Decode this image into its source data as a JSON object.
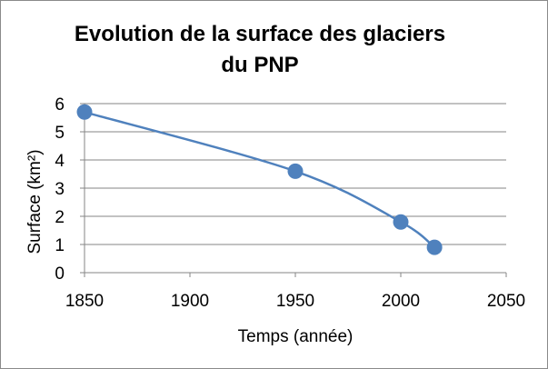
{
  "chart_data": {
    "type": "scatter",
    "title_line1": "Evolution de la surface des glaciers",
    "title_line2": "du PNP",
    "xlabel": "Temps (année)",
    "ylabel": "Surface (km²)",
    "xlim": [
      1850,
      2050
    ],
    "ylim": [
      0,
      6
    ],
    "x_ticks": [
      1850,
      1900,
      1950,
      2000,
      2050
    ],
    "y_ticks": [
      0,
      1,
      2,
      3,
      4,
      5,
      6
    ],
    "grid": "horizontal",
    "line": "smoothed",
    "series": [
      {
        "x": [
          1850,
          1950,
          2000,
          2016
        ],
        "y": [
          5.7,
          3.6,
          1.8,
          0.9
        ]
      }
    ],
    "colors": {
      "series": "#4f81bd",
      "grid": "#868686",
      "axis": "#868686"
    }
  }
}
